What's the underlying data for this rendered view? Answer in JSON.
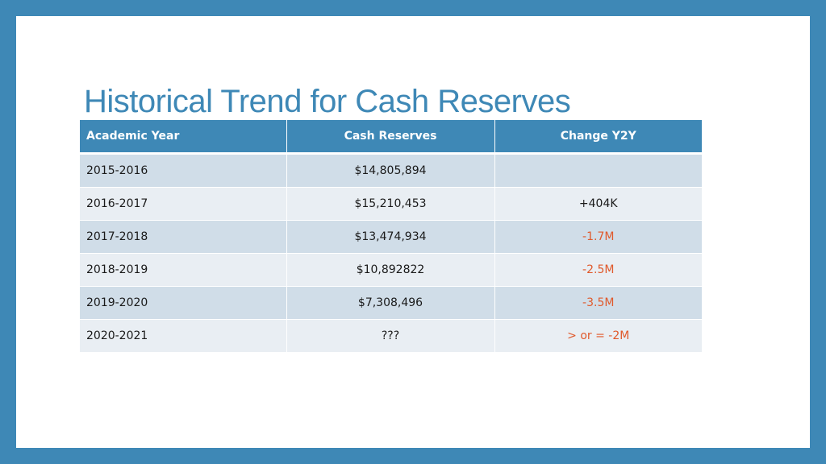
{
  "title": "Historical Trend for Cash Reserves",
  "colors": {
    "accent": "#3e88b6",
    "row_band_dark": "#d0dde8",
    "row_band_light": "#e9eef3",
    "negative_change": "#e0592b"
  },
  "table": {
    "headers": [
      "Academic Year",
      "Cash Reserves",
      "Change Y2Y"
    ],
    "rows": [
      {
        "year": "2015-2016",
        "reserves": "$14,805,894",
        "change": ""
      },
      {
        "year": "2016-2017",
        "reserves": "$15,210,453",
        "change": "+404K"
      },
      {
        "year": "2017-2018",
        "reserves": "$13,474,934",
        "change": "-1.7M"
      },
      {
        "year": "2018-2019",
        "reserves": "$10,892822",
        "change": "-2.5M"
      },
      {
        "year": "2019-2020",
        "reserves": "$7,308,496",
        "change": "-3.5M"
      },
      {
        "year": "2020-2021",
        "reserves": "???",
        "change": "> or = -2M"
      }
    ]
  }
}
